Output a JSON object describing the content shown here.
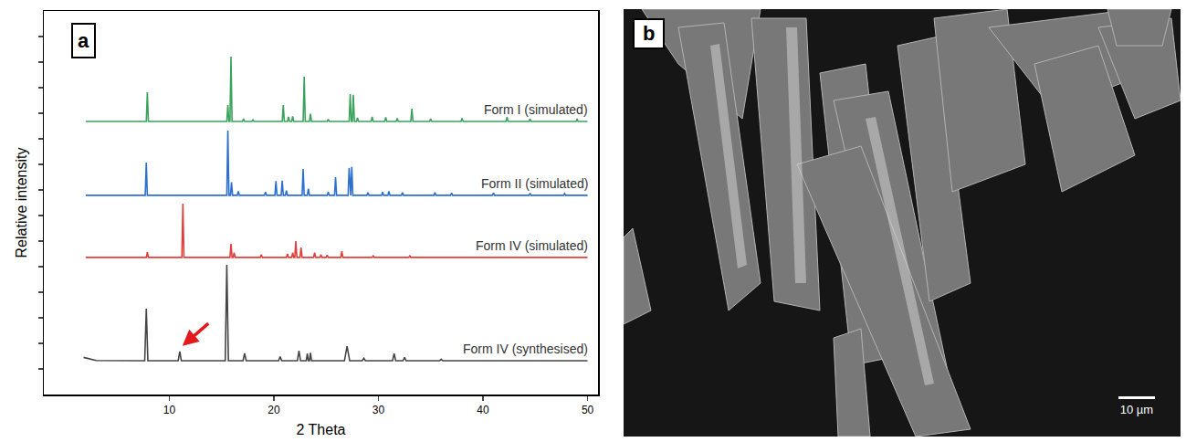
{
  "chart_data": {
    "type": "line",
    "x_label": "2 Theta",
    "y_label": "Relative intensity",
    "xlim": [
      -2,
      51
    ],
    "xticks": [
      10,
      20,
      30,
      40,
      50
    ],
    "ylim": [
      0,
      15
    ],
    "yticks": [
      1,
      2,
      3,
      4,
      5,
      6,
      7,
      8,
      9,
      10,
      11,
      12,
      13,
      14
    ],
    "tick_labels": "x",
    "grid": false,
    "series": [
      {
        "name": "Form I (simulated)",
        "color": "#3aa35c",
        "x": [
          2,
          7.8,
          7.9,
          8.0,
          15.5,
          15.6,
          15.7,
          15.8,
          15.9,
          16.0,
          17.0,
          17.1,
          17.2,
          17.9,
          18.0,
          18.1,
          20.8,
          20.9,
          21.0,
          21.3,
          21.4,
          21.5,
          21.7,
          21.8,
          21.9,
          22.8,
          22.9,
          23.0,
          23.4,
          23.5,
          23.6,
          25.1,
          25.2,
          25.3,
          27.2,
          27.3,
          27.4,
          27.5,
          27.6,
          27.7,
          27.9,
          28.0,
          28.1,
          29.3,
          29.4,
          29.5,
          30.6,
          30.7,
          30.8,
          31.7,
          31.8,
          31.9,
          33.1,
          33.2,
          33.3,
          34.9,
          35.0,
          35.1,
          37.9,
          38.0,
          38.1,
          42.2,
          42.3,
          42.4,
          44.4,
          44.5,
          44.6,
          48.9,
          49.0,
          49.1,
          50
        ],
        "values": [
          10.68,
          10.68,
          11.82,
          10.68,
          10.68,
          11.32,
          10.68,
          10.68,
          13.21,
          10.68,
          10.68,
          10.78,
          10.68,
          10.68,
          10.74,
          10.68,
          10.68,
          11.32,
          10.68,
          10.68,
          10.86,
          10.68,
          10.68,
          10.88,
          10.68,
          10.68,
          12.43,
          10.68,
          10.68,
          10.98,
          10.68,
          10.68,
          10.76,
          10.68,
          10.68,
          11.75,
          10.68,
          10.68,
          11.72,
          10.68,
          10.68,
          10.82,
          10.68,
          10.68,
          10.86,
          10.68,
          10.68,
          10.84,
          10.68,
          10.68,
          10.8,
          10.68,
          10.68,
          11.18,
          10.68,
          10.68,
          10.78,
          10.68,
          10.68,
          10.8,
          10.68,
          10.68,
          10.85,
          10.68,
          10.68,
          10.78,
          10.68,
          10.68,
          10.78,
          10.68,
          10.68
        ]
      },
      {
        "name": "Form II (simulated)",
        "color": "#2c6fd1",
        "x": [
          2,
          7.7,
          7.8,
          7.9,
          15.5,
          15.6,
          15.7,
          15.85,
          15.95,
          16.05,
          16.5,
          16.6,
          16.7,
          19.1,
          19.2,
          19.3,
          20.1,
          20.2,
          20.3,
          20.7,
          20.8,
          20.9,
          21.1,
          21.2,
          21.3,
          22.7,
          22.8,
          22.9,
          23.2,
          23.3,
          23.4,
          25.1,
          25.2,
          25.3,
          25.8,
          25.9,
          26.0,
          27.1,
          27.2,
          27.3,
          27.35,
          27.45,
          27.55,
          28.9,
          29.0,
          29.1,
          30.3,
          30.4,
          30.5,
          30.9,
          31.0,
          31.1,
          32.2,
          32.3,
          32.4,
          35.3,
          35.4,
          35.5,
          36.9,
          37.0,
          37.1,
          40.9,
          41.0,
          41.1,
          44.4,
          44.5,
          44.6,
          47.7,
          47.8,
          47.9,
          50
        ],
        "values": [
          7.79,
          7.79,
          9.07,
          7.79,
          7.79,
          10.32,
          7.79,
          7.79,
          8.3,
          7.79,
          7.79,
          7.95,
          7.79,
          7.79,
          7.92,
          7.79,
          7.79,
          8.35,
          7.79,
          7.79,
          8.36,
          7.79,
          7.79,
          7.98,
          7.79,
          7.79,
          8.82,
          7.79,
          7.79,
          8.05,
          7.79,
          7.79,
          7.92,
          7.79,
          7.79,
          8.5,
          7.79,
          7.79,
          8.86,
          7.79,
          7.79,
          8.9,
          7.79,
          7.79,
          7.9,
          7.79,
          7.79,
          7.92,
          7.79,
          7.79,
          7.95,
          7.79,
          7.79,
          7.9,
          7.79,
          7.79,
          7.9,
          7.79,
          7.79,
          7.88,
          7.79,
          7.79,
          7.88,
          7.79,
          7.79,
          7.87,
          7.79,
          7.79,
          7.86,
          7.79,
          7.79
        ]
      },
      {
        "name": "Form IV (simulated)",
        "color": "#e0403c",
        "x": [
          2,
          7.8,
          7.9,
          8.0,
          11.2,
          11.3,
          11.4,
          15.8,
          15.9,
          16.0,
          16.1,
          16.2,
          16.3,
          18.7,
          18.8,
          18.9,
          21.2,
          21.3,
          21.4,
          21.7,
          21.8,
          21.9,
          22.0,
          22.1,
          22.2,
          22.5,
          22.6,
          22.7,
          23.8,
          23.9,
          24.0,
          24.4,
          24.5,
          24.6,
          25.0,
          25.1,
          25.2,
          26.4,
          26.5,
          26.6,
          29.4,
          29.5,
          29.6,
          32.9,
          33.0,
          33.1,
          50
        ],
        "values": [
          5.36,
          5.36,
          5.57,
          5.36,
          5.36,
          7.46,
          5.36,
          5.36,
          5.89,
          5.36,
          5.36,
          5.55,
          5.36,
          5.36,
          5.47,
          5.36,
          5.36,
          5.5,
          5.36,
          5.36,
          5.55,
          5.36,
          5.36,
          6.0,
          5.36,
          5.36,
          5.75,
          5.36,
          5.36,
          5.55,
          5.36,
          5.36,
          5.47,
          5.36,
          5.36,
          5.45,
          5.36,
          5.36,
          5.6,
          5.36,
          5.36,
          5.42,
          5.36,
          5.36,
          5.42,
          5.36,
          5.36
        ]
      },
      {
        "name": "Form IV (synthesised)",
        "color": "#454545",
        "x": [
          1.8,
          3,
          7.65,
          7.8,
          7.95,
          10.85,
          11.0,
          11.15,
          15.35,
          15.5,
          15.65,
          17.05,
          17.2,
          17.35,
          20.45,
          20.6,
          20.75,
          22.25,
          22.4,
          22.55,
          23.1,
          23.2,
          23.3,
          23.4,
          23.5,
          23.6,
          26.75,
          27.0,
          27.25,
          28.45,
          28.6,
          28.75,
          31.35,
          31.5,
          31.65,
          32.35,
          32.5,
          32.65,
          35.85,
          36.0,
          36.15,
          50
        ],
        "values": [
          1.45,
          1.33,
          1.32,
          3.36,
          1.32,
          1.32,
          1.68,
          1.32,
          1.32,
          5.07,
          1.32,
          1.32,
          1.61,
          1.32,
          1.32,
          1.48,
          1.32,
          1.32,
          1.71,
          1.32,
          1.32,
          1.6,
          1.32,
          1.32,
          1.63,
          1.32,
          1.32,
          1.89,
          1.32,
          1.32,
          1.42,
          1.32,
          1.32,
          1.6,
          1.32,
          1.32,
          1.45,
          1.32,
          1.32,
          1.38,
          1.32,
          1.32
        ]
      }
    ],
    "annotations": [
      {
        "type": "arrow",
        "x": 11.25,
        "y": 1.9,
        "color": "#e31a1c"
      }
    ]
  },
  "panel_labels": [
    "a",
    "b"
  ],
  "image": {
    "scale_bar": "10 µm"
  }
}
